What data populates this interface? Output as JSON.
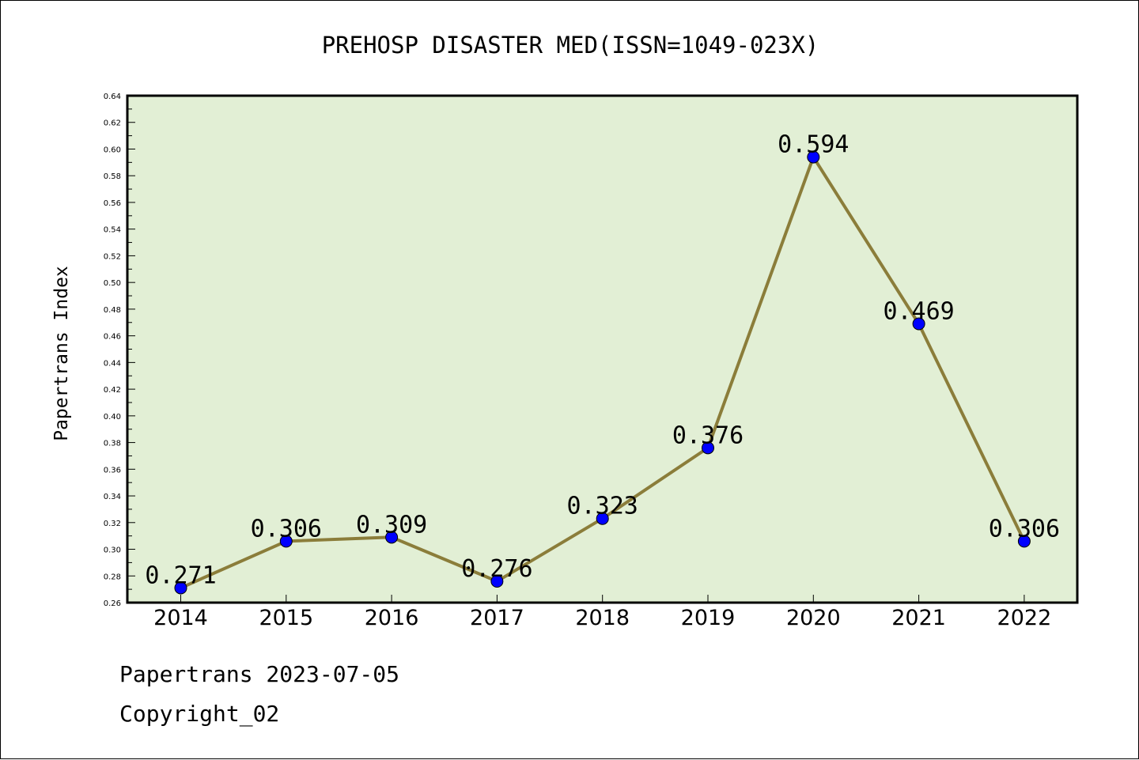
{
  "chart_data": {
    "type": "line",
    "title": "PREHOSP DISASTER MED(ISSN=1049-023X)",
    "ylabel": "Papertrans Index",
    "xlabel": "",
    "categories": [
      "2014",
      "2015",
      "2016",
      "2017",
      "2018",
      "2019",
      "2020",
      "2021",
      "2022"
    ],
    "series": [
      {
        "values": [
          0.271,
          0.306,
          0.309,
          0.276,
          0.323,
          0.376,
          0.594,
          0.469,
          0.306
        ]
      }
    ],
    "data_labels": [
      "0.271",
      "0.306",
      "0.309",
      "0.276",
      "0.323",
      "0.376",
      "0.594",
      "0.469",
      "0.306"
    ],
    "ylim": [
      0.26,
      0.64
    ],
    "yticks": [
      "0.26",
      "0.28",
      "0.30",
      "0.32",
      "0.34",
      "0.36",
      "0.38",
      "0.40",
      "0.42",
      "0.44",
      "0.46",
      "0.48",
      "0.50",
      "0.52",
      "0.54",
      "0.56",
      "0.58",
      "0.60",
      "0.62",
      "0.64"
    ],
    "grid": false,
    "colors": {
      "plot_background": "#e2efd5",
      "line": "#8b7d3a",
      "marker": "#0000ff"
    }
  },
  "footer": {
    "source": "Papertrans 2023-07-05",
    "copyright": "Copyright_02"
  }
}
